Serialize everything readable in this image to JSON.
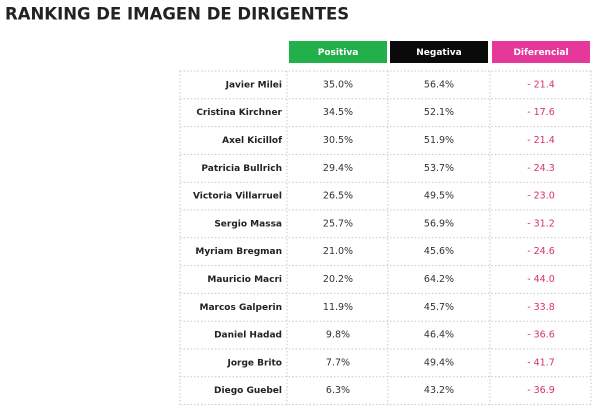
{
  "title": "RANKING DE IMAGEN DE DIRIGENTES",
  "table": {
    "headers": [
      "Positiva",
      "Negativa",
      "Diferencial"
    ],
    "rows": [
      [
        "Javier Milei",
        "35.0%",
        "56.4%",
        "- 21.4"
      ],
      [
        "Cristina Kirchner",
        "34.5%",
        "52.1%",
        "- 17.6"
      ],
      [
        "Axel Kicillof",
        "30.5%",
        "51.9%",
        "- 21.4"
      ],
      [
        "Patricia Bullrich",
        "29.4%",
        "53.7%",
        "- 24.3"
      ],
      [
        "Victoria Villarruel",
        "26.5%",
        "49.5%",
        "- 23.0"
      ],
      [
        "Sergio Massa",
        "25.7%",
        "56.9%",
        "- 31.2"
      ],
      [
        "Myriam Bregman",
        "21.0%",
        "45.6%",
        "- 24.6"
      ],
      [
        "Mauricio Macri",
        "20.2%",
        "64.2%",
        "- 44.0"
      ],
      [
        "Marcos Galperin",
        "11.9%",
        "45.7%",
        "- 33.8"
      ],
      [
        "Daniel Hadad",
        "9.8%",
        "46.4%",
        "- 36.6"
      ],
      [
        "Jorge Brito",
        "7.7%",
        "49.4%",
        "- 41.7"
      ],
      [
        "Diego Guebel",
        "6.3%",
        "43.2%",
        "- 36.9"
      ]
    ]
  }
}
